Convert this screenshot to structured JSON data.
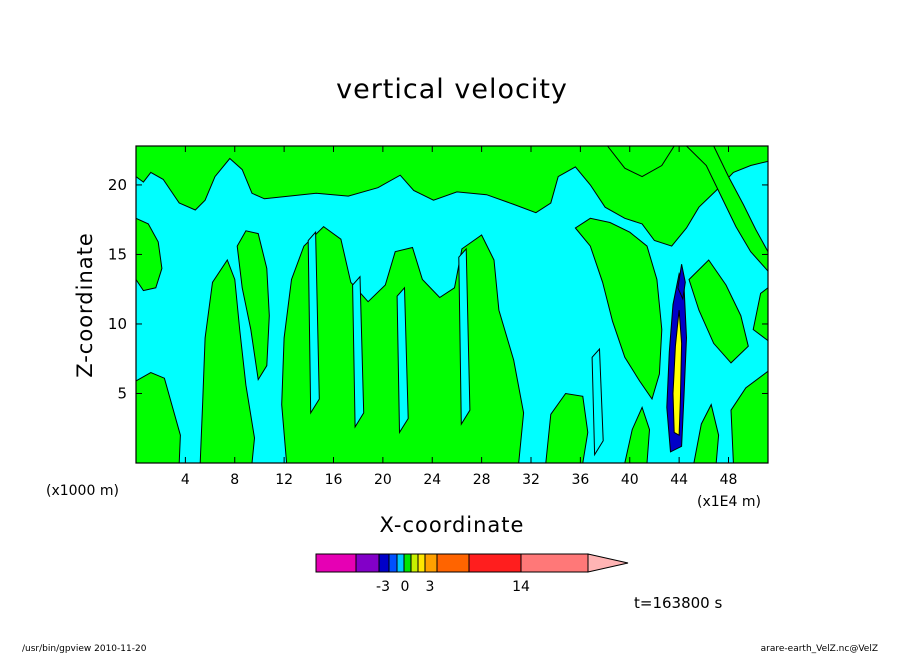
{
  "chart_data": {
    "type": "heatmap",
    "title": "vertical velocity",
    "xlabel": "X-coordinate",
    "ylabel": "Z-coordinate",
    "x_unit_label": "(x1000 m)",
    "x_scale_label": "(x1E4 m)",
    "xlim": [
      0,
      51.2
    ],
    "ylim": [
      0,
      22.8
    ],
    "x_ticks": [
      4,
      8,
      12,
      16,
      20,
      24,
      28,
      32,
      36,
      40,
      44,
      48
    ],
    "y_ticks": [
      5,
      10,
      15,
      20
    ],
    "colorbar": {
      "tick_labels": [
        "-3",
        "0",
        "3",
        "14"
      ],
      "colors": [
        "#e600b4",
        "#8200c8",
        "#0000c8",
        "#0050ff",
        "#00c8ff",
        "#00e600",
        "#c8f000",
        "#ffe600",
        "#ffa000",
        "#ff6400",
        "#ff1e1e",
        "#ff7878",
        "#ffb4b4"
      ]
    },
    "field_colors": {
      "positive": "#00ff00",
      "negative": "#00ffff",
      "strong": "#0000c8",
      "peak": "#ffff00"
    },
    "time_label": "t=163800 s"
  },
  "footer": {
    "left": "/usr/bin/gpview   2010-11-20",
    "right": "arare-earth_VelZ.nc@VelZ"
  }
}
